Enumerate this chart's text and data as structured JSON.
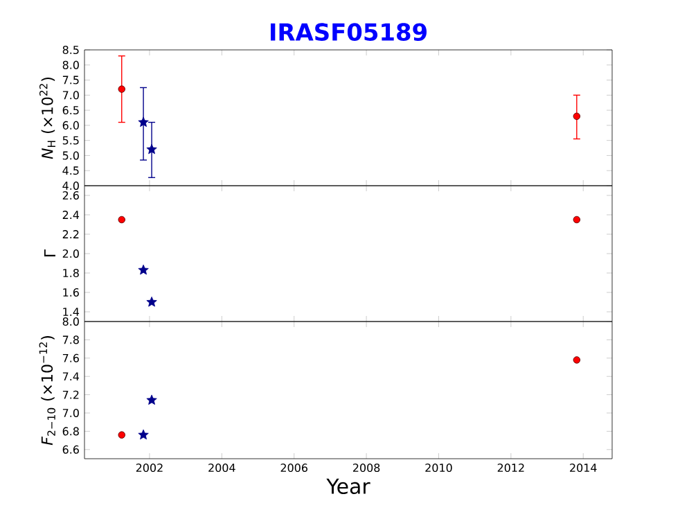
{
  "chart_data": [
    {
      "type": "scatter",
      "title": "IRASF05189",
      "ylabel": "*N*$_{H}$ (×10$^{22}$)",
      "xlim": [
        2000.2,
        2014.8
      ],
      "xticks": [
        2002,
        2004,
        2006,
        2008,
        2010,
        2012,
        2014
      ],
      "ylim": [
        4.0,
        8.5
      ],
      "yticks": [
        {
          "value": 4.0,
          "label": "4.0"
        },
        4.5,
        {
          "value": 5.0,
          "label": "5.0"
        },
        5.5,
        {
          "value": 6.0,
          "label": "6.0"
        },
        6.5,
        {
          "value": 7.0,
          "label": "7.0"
        },
        7.5,
        {
          "value": 8.0,
          "label": "8.0"
        },
        8.5
      ],
      "tick_labels": "y",
      "grid": false,
      "series": [
        {
          "color": "#ff0000",
          "marker": "circle",
          "x": [
            2001.23,
            2013.82
          ],
          "values": [
            7.2,
            6.3
          ],
          "errors": [
            [
              6.1,
              8.3
            ],
            [
              5.55,
              7.0
            ]
          ]
        },
        {
          "color": "#00008b",
          "marker": "star",
          "x": [
            2001.83,
            2002.06
          ],
          "values": [
            6.1,
            5.2
          ],
          "errors": [
            [
              4.85,
              7.25
            ],
            [
              4.27,
              6.1
            ]
          ]
        }
      ]
    },
    {
      "type": "scatter",
      "ylabel": "Γ",
      "xlim": [
        2000.2,
        2014.8
      ],
      "xticks": [
        2002,
        2004,
        2006,
        2008,
        2010,
        2012,
        2014
      ],
      "ylim": [
        1.3,
        2.7
      ],
      "yticks": [
        1.4,
        1.6,
        1.8,
        {
          "value": 2.0,
          "label": "2.0"
        },
        2.2,
        2.4,
        2.6
      ],
      "tick_labels": "y",
      "grid": false,
      "series": [
        {
          "color": "#ff0000",
          "marker": "circle",
          "x": [
            2001.23,
            2013.82
          ],
          "values": [
            2.35,
            2.35
          ]
        },
        {
          "color": "#00008b",
          "marker": "star",
          "x": [
            2001.83,
            2002.06
          ],
          "values": [
            1.83,
            1.5
          ]
        }
      ]
    },
    {
      "type": "scatter",
      "ylabel": "*F*$_{2−10}$ (×10$^{−12}$)",
      "xlabel": "Year",
      "xlim": [
        2000.2,
        2014.8
      ],
      "xticks": [
        2002,
        2004,
        2006,
        2008,
        2010,
        2012,
        2014
      ],
      "ylim": [
        6.5,
        8.0
      ],
      "yticks": [
        6.6,
        6.8,
        {
          "value": 7.0,
          "label": "7.0"
        },
        7.2,
        7.4,
        7.6,
        7.8,
        {
          "value": 8.0,
          "label": "8.0"
        }
      ],
      "grid": false,
      "series": [
        {
          "color": "#ff0000",
          "marker": "circle",
          "x": [
            2001.23,
            2013.82
          ],
          "values": [
            6.76,
            7.58
          ]
        },
        {
          "color": "#00008b",
          "marker": "star",
          "x": [
            2001.83,
            2002.06
          ],
          "values": [
            6.76,
            7.14
          ]
        }
      ]
    }
  ]
}
